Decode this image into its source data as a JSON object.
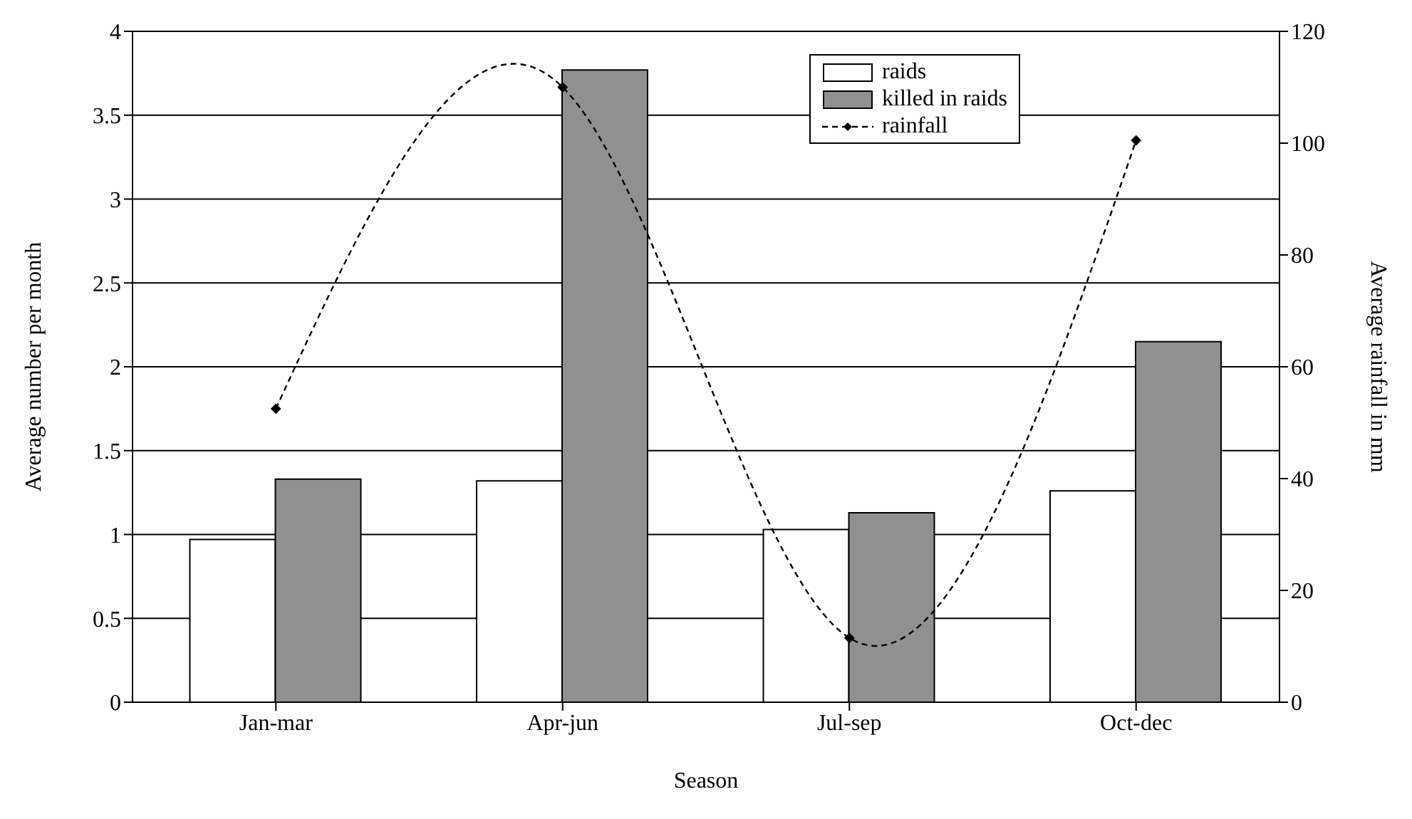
{
  "chart_data": {
    "type": "bar",
    "xlabel": "Season",
    "ylabel": "Average number per month",
    "y2label": "Average rainfall in mm",
    "categories": [
      "Jan-mar",
      "Apr-jun",
      "Jul-sep",
      "Oct-dec"
    ],
    "series": [
      {
        "name": "raids",
        "color": "#ffffff",
        "values": [
          0.97,
          1.32,
          1.03,
          1.26
        ]
      },
      {
        "name": "killed in raids",
        "color": "#909090",
        "values": [
          1.33,
          3.77,
          1.13,
          2.15
        ]
      },
      {
        "name": "rainfall",
        "type": "line",
        "axis": "y2",
        "color": "#000000",
        "marker": "diamond",
        "line_style": "dashed",
        "values": [
          52.5,
          110,
          11.5,
          100.5
        ]
      }
    ],
    "ylim": [
      0,
      4
    ],
    "yticks": [
      0,
      0.5,
      1,
      1.5,
      2,
      2.5,
      3,
      3.5,
      4
    ],
    "y2lim": [
      0,
      120
    ],
    "y2ticks": [
      0,
      20,
      40,
      60,
      80,
      100,
      120
    ],
    "grid": "y",
    "legend": "top right"
  }
}
